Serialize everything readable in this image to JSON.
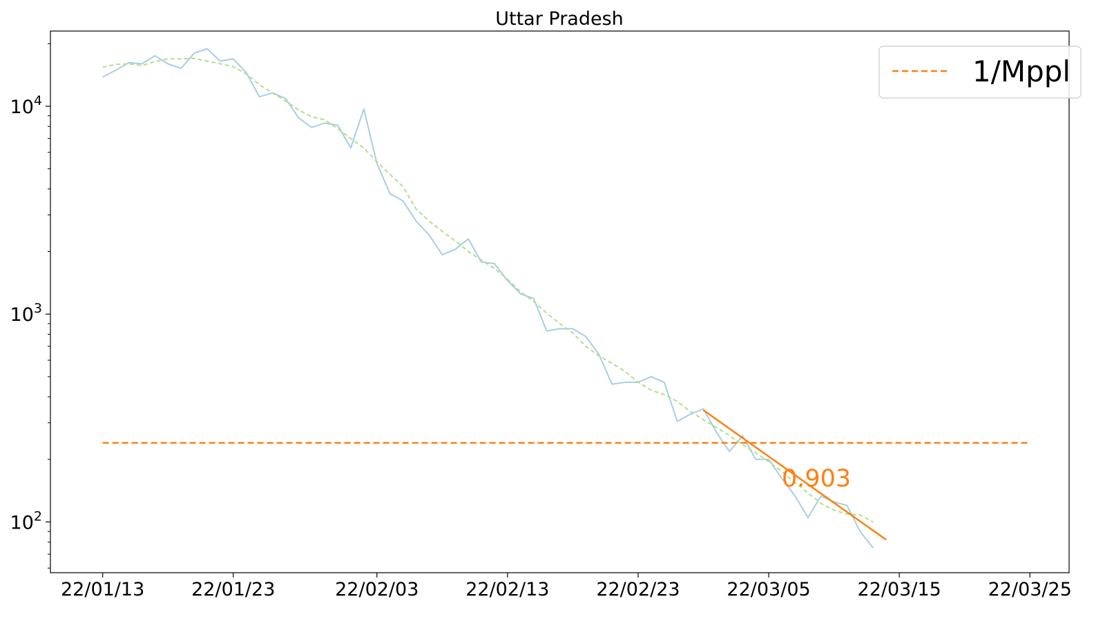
{
  "chart_data": {
    "type": "line",
    "title": "Uttar Pradesh",
    "xlabel": "",
    "ylabel": "",
    "y_scale": "log",
    "x_range": [
      "2022-01-09",
      "2022-03-28"
    ],
    "ylim": [
      57,
      23000
    ],
    "x_ticks": [
      {
        "date": "2022-01-13",
        "label": "22/01/13"
      },
      {
        "date": "2022-01-23",
        "label": "22/01/23"
      },
      {
        "date": "2022-02-03",
        "label": "22/02/03"
      },
      {
        "date": "2022-02-13",
        "label": "22/02/13"
      },
      {
        "date": "2022-02-23",
        "label": "22/02/23"
      },
      {
        "date": "2022-03-05",
        "label": "22/03/05"
      },
      {
        "date": "2022-03-15",
        "label": "22/03/15"
      },
      {
        "date": "2022-03-25",
        "label": "22/03/25"
      }
    ],
    "y_ticks": [
      {
        "value": 100,
        "base": "10",
        "exp": "2"
      },
      {
        "value": 1000,
        "base": "10",
        "exp": "3"
      },
      {
        "value": 10000,
        "base": "10",
        "exp": "4"
      }
    ],
    "grid": false,
    "legend": {
      "position": "top-right",
      "entries": [
        {
          "label": "1/Mppl",
          "series": "threshold"
        }
      ]
    },
    "series": [
      {
        "key": "daily",
        "color": "#a6cee3",
        "style": "solid",
        "x_start": "2022-01-13",
        "values": [
          13800,
          14900,
          16200,
          16000,
          17500,
          16000,
          15200,
          18000,
          18900,
          16500,
          16900,
          14500,
          11100,
          11600,
          10900,
          8800,
          7900,
          8300,
          8100,
          6300,
          9700,
          5300,
          3800,
          3500,
          2800,
          2400,
          1930,
          2050,
          2300,
          1780,
          1750,
          1450,
          1250,
          1190,
          830,
          850,
          850,
          780,
          640,
          460,
          470,
          470,
          500,
          470,
          305,
          330,
          350,
          270,
          218,
          260,
          200,
          200,
          162,
          134,
          105,
          133,
          125,
          120,
          90,
          75
        ]
      },
      {
        "key": "smoothed",
        "color": "#b2df8a",
        "style": "dashed",
        "x_start": "2022-01-13",
        "values": [
          15400,
          15900,
          16000,
          15700,
          16400,
          16900,
          16900,
          17000,
          16500,
          16000,
          15500,
          14300,
          12700,
          11600,
          10600,
          9600,
          8900,
          8600,
          7800,
          7000,
          6300,
          5400,
          4700,
          4100,
          3200,
          2800,
          2500,
          2250,
          2000,
          1820,
          1660,
          1470,
          1280,
          1150,
          1010,
          900,
          810,
          700,
          630,
          580,
          530,
          470,
          430,
          410,
          380,
          340,
          310,
          285,
          260,
          235,
          215,
          195,
          175,
          155,
          138,
          123,
          114,
          109,
          108,
          100
        ]
      },
      {
        "key": "threshold",
        "name": "1/Mppl",
        "color": "#ff7f0e",
        "style": "dashed",
        "x": [
          "2022-01-13",
          "2022-03-25"
        ],
        "values": [
          240,
          240
        ]
      },
      {
        "key": "fit",
        "color": "#ff7f0e",
        "style": "solid",
        "x": [
          "2022-02-28",
          "2022-03-14"
        ],
        "values": [
          345,
          82
        ]
      }
    ],
    "annotations": [
      {
        "text": "0.903",
        "x": "2022-03-06",
        "y": 148,
        "color": "#ff7f0e"
      }
    ]
  }
}
